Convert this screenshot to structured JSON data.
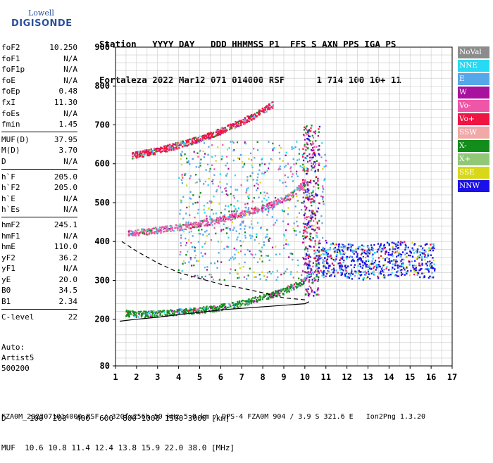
{
  "logo": {
    "line1": "Lowell",
    "line2": "DIGISONDE"
  },
  "header": {
    "line1": "Station   YYYY DAY   DDD HHMMSS P1  FFS S AXN PPS IGA PS",
    "line2": "Fortaleza 2022 Mar12 071 014000 RSF      1 714 100 10+ 11"
  },
  "params": [
    [
      {
        "k": "foF2",
        "v": "10.250"
      },
      {
        "k": "foF1",
        "v": "N/A"
      },
      {
        "k": "foF1p",
        "v": "N/A"
      },
      {
        "k": "foE",
        "v": "N/A"
      },
      {
        "k": "foEp",
        "v": "0.48"
      },
      {
        "k": "fxI",
        "v": "11.30"
      },
      {
        "k": "foEs",
        "v": "N/A"
      },
      {
        "k": "fmin",
        "v": "1.45"
      }
    ],
    [
      {
        "k": "MUF(D)",
        "v": "37.95"
      },
      {
        "k": "M(D)",
        "v": "3.70"
      },
      {
        "k": "D",
        "v": "N/A"
      }
    ],
    [
      {
        "k": "h`F",
        "v": "205.0"
      },
      {
        "k": "h`F2",
        "v": "205.0"
      },
      {
        "k": "h`E",
        "v": "N/A"
      },
      {
        "k": "h`Es",
        "v": "N/A"
      }
    ],
    [
      {
        "k": "hmF2",
        "v": "245.1"
      },
      {
        "k": "hmF1",
        "v": "N/A"
      },
      {
        "k": "hmE",
        "v": "110.0"
      },
      {
        "k": "yF2",
        "v": "36.2"
      },
      {
        "k": "yF1",
        "v": "N/A"
      },
      {
        "k": "yE",
        "v": "20.0"
      },
      {
        "k": "B0",
        "v": "34.5"
      },
      {
        "k": "B1",
        "v": "2.34"
      }
    ],
    [
      {
        "k": "C-level",
        "v": "22"
      }
    ]
  ],
  "auto": {
    "l1": "Auto:",
    "l2": "Artist5",
    "l3": "500200"
  },
  "legend": [
    {
      "label": "NoVal",
      "color": "#8c8c8c"
    },
    {
      "label": "NNE",
      "color": "#27d9f2"
    },
    {
      "label": "E",
      "color": "#56a7ea"
    },
    {
      "label": "W",
      "color": "#a8109e"
    },
    {
      "label": "Vo-",
      "color": "#ee56a7"
    },
    {
      "label": "Vo+",
      "color": "#ee1543"
    },
    {
      "label": "SSW",
      "color": "#f0a8a8"
    },
    {
      "label": "X-",
      "color": "#128c1b"
    },
    {
      "label": "X+",
      "color": "#90c878"
    },
    {
      "label": "SSE",
      "color": "#d8d818"
    },
    {
      "label": "NNW",
      "color": "#1c10e8"
    }
  ],
  "bottom": {
    "d_line": "D     100  200  400  600  800 1000 1500 3000 [km]",
    "muf_line": "MUF  10.6 10.8 11.4 12.4 13.8 15.9 22.0 38.0 [MHz]"
  },
  "footer": "FZA0M_2022071014000.RSF / 320fx256h 50 kHz 5.0 km / DPS-4 FZA0M 904 / 3.9 S 321.6 E   Ion2Png 1.3.20",
  "chart_data": {
    "type": "scatter",
    "title": "",
    "xlabel": "",
    "ylabel": "",
    "xlim": [
      1,
      17
    ],
    "ylim": [
      80,
      900
    ],
    "x_ticks": [
      1,
      2,
      3,
      4,
      5,
      6,
      7,
      8,
      9,
      10,
      11,
      12,
      13,
      14,
      15,
      16,
      17
    ],
    "y_ticks": [
      80,
      200,
      300,
      400,
      500,
      600,
      700,
      800,
      900
    ],
    "grid": true,
    "series": [
      {
        "name": "X-",
        "values": [
          [
            1.5,
            215
          ],
          [
            2,
            212
          ],
          [
            3,
            214
          ],
          [
            4,
            218
          ],
          [
            5,
            222
          ],
          [
            6,
            230
          ],
          [
            7,
            240
          ],
          [
            8,
            255
          ],
          [
            9,
            272
          ],
          [
            9.5,
            285
          ],
          [
            10,
            300
          ],
          [
            10.2,
            330
          ]
        ]
      },
      {
        "name": "Vo-",
        "values": [
          [
            1.6,
            420
          ],
          [
            2.5,
            425
          ],
          [
            3.5,
            432
          ],
          [
            4.5,
            440
          ],
          [
            5.5,
            450
          ],
          [
            6.5,
            462
          ],
          [
            7.5,
            478
          ],
          [
            8.5,
            495
          ],
          [
            9.3,
            515
          ],
          [
            10,
            550
          ]
        ]
      },
      {
        "name": "Vo+",
        "values": [
          [
            1.8,
            620
          ],
          [
            2.5,
            628
          ],
          [
            3.5,
            640
          ],
          [
            4.5,
            655
          ],
          [
            5.5,
            672
          ],
          [
            6.5,
            695
          ],
          [
            7.5,
            720
          ],
          [
            8.5,
            752
          ]
        ]
      },
      {
        "name": "NNW",
        "values": [
          [
            10.5,
            350
          ],
          [
            11.5,
            355
          ],
          [
            12.5,
            345
          ],
          [
            13.5,
            350
          ],
          [
            14.5,
            355
          ],
          [
            15.5,
            352
          ],
          [
            16.2,
            350
          ]
        ]
      }
    ],
    "profile_solid": [
      [
        1.2,
        195
      ],
      [
        2,
        200
      ],
      [
        3,
        205
      ],
      [
        4,
        212
      ],
      [
        5,
        218
      ],
      [
        6,
        224
      ],
      [
        7,
        228
      ],
      [
        8,
        232
      ],
      [
        9,
        236
      ],
      [
        10,
        240
      ],
      [
        10.2,
        245
      ]
    ],
    "profile_dashed": [
      [
        1.3,
        400
      ],
      [
        2,
        375
      ],
      [
        3,
        345
      ],
      [
        4,
        320
      ],
      [
        5,
        305
      ],
      [
        6,
        290
      ],
      [
        7,
        280
      ],
      [
        8,
        268
      ],
      [
        9,
        255
      ],
      [
        10,
        250
      ]
    ]
  }
}
